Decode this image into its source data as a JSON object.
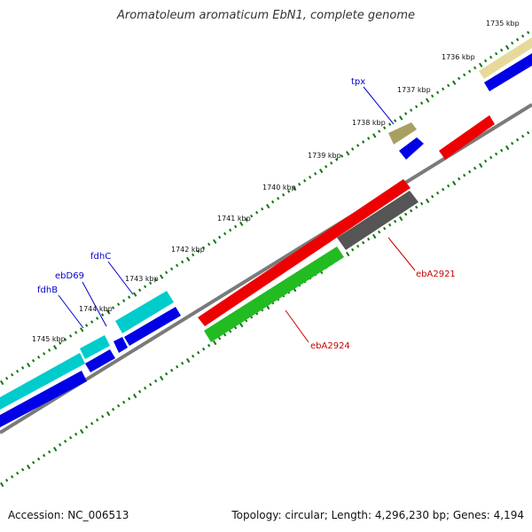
{
  "title": "Aromatoleum aromaticum EbN1, complete genome",
  "footer": {
    "accession": "Accession: NC_006513",
    "summary": "Topology: circular; Length: 4,296,230 bp; Genes: 4,194"
  },
  "colors": {
    "tick_green": "#117711",
    "backbone": "#7f7f7f",
    "label_blue": "#0000cc",
    "label_red": "#cc0000"
  },
  "ruler": {
    "labels": [
      "1735 kbp",
      "1736 kbp",
      "1737 kbp",
      "1738 kbp",
      "1739 kbp",
      "1740 kbp",
      "1741 kbp",
      "1742 kbp",
      "1743 kbp",
      "1744 kbp",
      "1745 kbp"
    ]
  },
  "features": [
    {
      "name": "tpx",
      "label": "tpx",
      "label_color": "#0000cc"
    },
    {
      "name": "fdhC",
      "label": "fdhC",
      "label_color": "#0000cc"
    },
    {
      "name": "ebD69",
      "label": "ebD69",
      "label_color": "#0000cc"
    },
    {
      "name": "fdhB",
      "label": "fdhB",
      "label_color": "#0000cc"
    },
    {
      "name": "ebA2921",
      "label": "ebA2921",
      "label_color": "#cc0000"
    },
    {
      "name": "ebA2924",
      "label": "ebA2924",
      "label_color": "#cc0000"
    }
  ]
}
